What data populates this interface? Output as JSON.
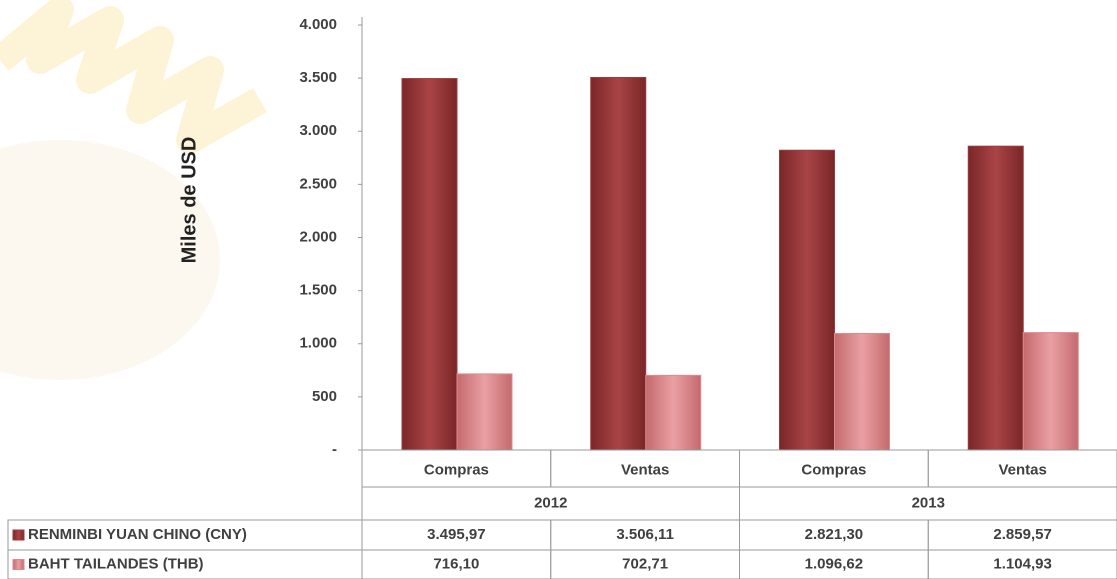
{
  "chart_data": {
    "type": "bar",
    "y_label": "Miles de USD",
    "categories": [
      "Compras",
      "Ventas",
      "Compras",
      "Ventas"
    ],
    "groups": [
      "2012",
      "2013"
    ],
    "series": [
      {
        "name": "RENMINBI YUAN CHINO (CNY)",
        "color": "#9b3b3d",
        "values": [
          3495.97,
          3506.11,
          2821.3,
          2859.57
        ],
        "value_labels": [
          "3.495,97",
          "3.506,11",
          "2.821,30",
          "2.859,57"
        ]
      },
      {
        "name": "BAHT TAILANDES (THB)",
        "color": "#dd8a8e",
        "values": [
          716.1,
          702.71,
          1096.62,
          1104.93
        ],
        "value_labels": [
          "716,10",
          "702,71",
          "1.096,62",
          "1.104,93"
        ]
      }
    ],
    "ylim": [
      0,
      4000
    ],
    "yticks": [
      {
        "value": 0,
        "label": "-"
      },
      {
        "value": 500,
        "label": "500"
      },
      {
        "value": 1000,
        "label": "1.000"
      },
      {
        "value": 1500,
        "label": "1.500"
      },
      {
        "value": 2000,
        "label": "2.000"
      },
      {
        "value": 2500,
        "label": "2.500"
      },
      {
        "value": 3000,
        "label": "3.000"
      },
      {
        "value": 3500,
        "label": "3.500"
      },
      {
        "value": 4000,
        "label": "4.000"
      }
    ]
  }
}
